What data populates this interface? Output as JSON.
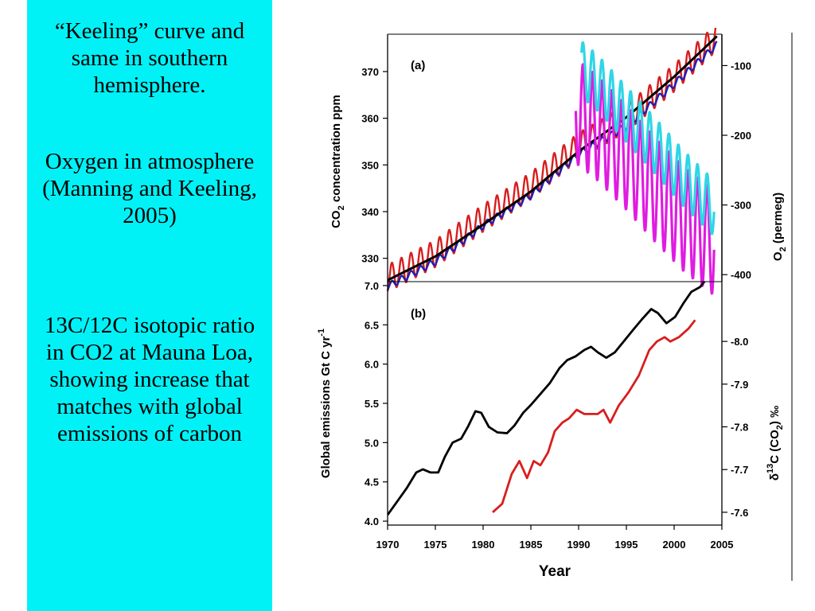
{
  "slide": {
    "sidebar_bg": "#00f2f7",
    "paragraph1": "“Keeling” curve and same in southern hemisphere.",
    "paragraph2": "Oxygen in atmosphere (Manning and Keeling, 2005)",
    "paragraph3": "13C/12C isotopic ratio in CO2 at Mauna Loa, showing increase that matches with global emissions of carbon"
  },
  "chart_data": [
    {
      "panel": "(a)",
      "type": "line",
      "xlabel": "Year",
      "xlim": [
        1970,
        2005
      ],
      "x_ticks": [
        1970,
        1975,
        1980,
        1985,
        1990,
        1995,
        2000,
        2005
      ],
      "ylabel_left": "CO2 concentration ppm",
      "ylim_left": [
        325,
        378
      ],
      "y_ticks_left": [
        330,
        340,
        350,
        360,
        370
      ],
      "ylabel_right": "O2 (permeg)",
      "ylim_right": [
        -410,
        -55
      ],
      "y_ticks_right": [
        -100,
        -200,
        -300,
        -400
      ],
      "series": [
        {
          "axis": "left",
          "color": "#d81e1e",
          "x": [
            1970,
            1975,
            1980,
            1985,
            1990,
            1995,
            2000,
            2004.5
          ],
          "values": [
            325.7,
            331.0,
            338.6,
            345.5,
            354.0,
            360.0,
            368.6,
            377.5
          ],
          "seasonal_amplitude": 2.9
        },
        {
          "axis": "left",
          "color": "#1e1eb4",
          "x": [
            1970,
            1975,
            1980,
            1985,
            1990,
            1995,
            2000,
            2004.5
          ],
          "values": [
            324.0,
            329.3,
            337.0,
            343.5,
            352.3,
            358.3,
            367.3,
            375.8
          ],
          "seasonal_amplitude": 0.7
        },
        {
          "axis": "left",
          "color": "#000000",
          "x": [
            1970,
            1975,
            1980,
            1985,
            1990,
            1995,
            2000,
            2004.5
          ],
          "values": [
            325.3,
            330.4,
            337.2,
            344.3,
            352.9,
            360.2,
            368.9,
            377.6
          ],
          "seasonal_amplitude": 0
        },
        {
          "axis": "right",
          "color": "#e01ce0",
          "x": [
            1989.7,
            1992,
            1995,
            1998,
            2001,
            2004.2
          ],
          "values": [
            -165,
            -190,
            -232,
            -278,
            -320,
            -355
          ],
          "seasonal_amplitude": 75
        },
        {
          "axis": "right",
          "color": "#2ed6e6",
          "x": [
            1990.3,
            1992,
            1995,
            1998,
            2001,
            2004.2
          ],
          "values": [
            -105,
            -125,
            -170,
            -215,
            -262,
            -305
          ],
          "seasonal_amplitude": 40
        }
      ]
    },
    {
      "panel": "(b)",
      "type": "line",
      "xlabel": "Year",
      "xlim": [
        1970,
        2005
      ],
      "x_ticks": [
        1970,
        1975,
        1980,
        1985,
        1990,
        1995,
        2000,
        2005
      ],
      "ylabel_left": "Global emissions Gt C yr",
      "ylabel_left_sup": "-1",
      "ylim_left": [
        3.95,
        7.05
      ],
      "y_ticks_left": [
        "4.0",
        "4.5",
        "5.0",
        "5.5",
        "6.0",
        "6.5",
        "7.0"
      ],
      "ylabel_right_delta": "δ",
      "ylabel_right_sup": "13",
      "ylabel_right_c": "C (CO",
      "ylabel_right_sub": "2",
      "ylabel_right_end": ") ‰",
      "ylim_right": [
        -7.57,
        -8.14
      ],
      "y_ticks_right": [
        "-7.6",
        "-7.7",
        "-7.8",
        "-7.9",
        "-8.0"
      ],
      "series": [
        {
          "name": "emissions",
          "axis": "left",
          "color": "#000000",
          "x": [
            1970,
            1971,
            1972,
            1973,
            1973.7,
            1974.5,
            1975.3,
            1976,
            1976.8,
            1977.7,
            1978.4,
            1979.2,
            1979.8,
            1980.6,
            1981.5,
            1982.5,
            1983.3,
            1984.2,
            1985,
            1986,
            1987,
            1988,
            1988.8,
            1989.7,
            1990.6,
            1991.3,
            1992,
            1992.9,
            1993.8,
            1994.8,
            1995.8,
            1996.7,
            1997.6,
            1998.3,
            1999.2,
            2000.1,
            2001,
            2001.8,
            2002.7,
            2003.5
          ],
          "values": [
            4.08,
            4.25,
            4.42,
            4.62,
            4.66,
            4.62,
            4.62,
            4.82,
            5.0,
            5.05,
            5.2,
            5.4,
            5.38,
            5.2,
            5.13,
            5.12,
            5.22,
            5.38,
            5.48,
            5.62,
            5.76,
            5.95,
            6.05,
            6.1,
            6.18,
            6.22,
            6.15,
            6.08,
            6.15,
            6.3,
            6.45,
            6.58,
            6.7,
            6.65,
            6.52,
            6.6,
            6.78,
            6.92,
            6.98,
            7.1
          ]
        },
        {
          "name": "d13C",
          "axis": "right",
          "color": "#d81e1e",
          "x": [
            1981,
            1982,
            1983,
            1983.8,
            1984.6,
            1985.3,
            1986,
            1986.8,
            1987.5,
            1988.3,
            1989,
            1989.8,
            1990.6,
            1991.2,
            1992,
            1992.6,
            1993.3,
            1994.2,
            1995.2,
            1996.3,
            1997.4,
            1998.2,
            1999,
            1999.6,
            2000.5,
            2001.5,
            2002.2
          ],
          "values": [
            -7.6,
            -7.62,
            -7.69,
            -7.72,
            -7.68,
            -7.72,
            -7.71,
            -7.74,
            -7.79,
            -7.81,
            -7.82,
            -7.84,
            -7.83,
            -7.83,
            -7.83,
            -7.84,
            -7.81,
            -7.85,
            -7.88,
            -7.92,
            -7.98,
            -8.0,
            -8.01,
            -8.0,
            -8.01,
            -8.03,
            -8.05
          ]
        }
      ]
    }
  ]
}
